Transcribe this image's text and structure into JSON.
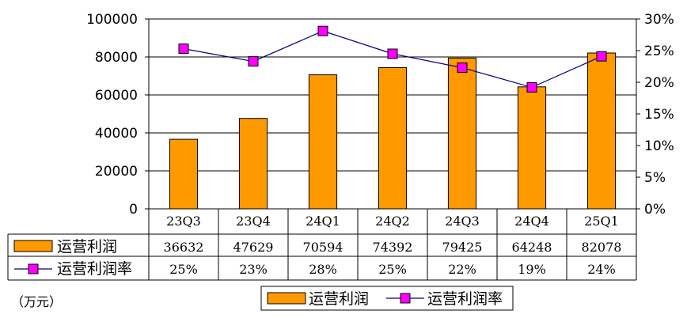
{
  "chart_data": {
    "type": "bar",
    "categories": [
      "23Q3",
      "23Q4",
      "24Q1",
      "24Q2",
      "24Q3",
      "24Q4",
      "25Q1"
    ],
    "series": [
      {
        "name": "运营利润",
        "type": "bar",
        "axis": "left",
        "values": [
          36632,
          47629,
          70594,
          74392,
          79425,
          64248,
          82078
        ]
      },
      {
        "name": "运营利润率",
        "type": "line",
        "axis": "right",
        "values": [
          25.3,
          23.3,
          28.1,
          24.5,
          22.3,
          19.2,
          24.1
        ],
        "table_labels": [
          "25%",
          "23%",
          "28%",
          "25%",
          "22%",
          "19%",
          "24%"
        ]
      }
    ],
    "left_axis": {
      "min": 0,
      "max": 100000,
      "ticks": [
        "0",
        "20000",
        "40000",
        "60000",
        "80000",
        "100000"
      ]
    },
    "right_axis": {
      "min": 0,
      "max": 30,
      "ticks": [
        "0%",
        "5%",
        "10%",
        "15%",
        "20%",
        "25%",
        "30%"
      ]
    },
    "unit_label": "（万元）",
    "legend": [
      "运营利润",
      "运营利润率"
    ],
    "legend_position": "bottom",
    "grid": true
  },
  "colors": {
    "bar": "#FF9900",
    "bar_border": "#000000",
    "line": "#000080",
    "marker": "#FF00FF",
    "grid": "#000000"
  }
}
